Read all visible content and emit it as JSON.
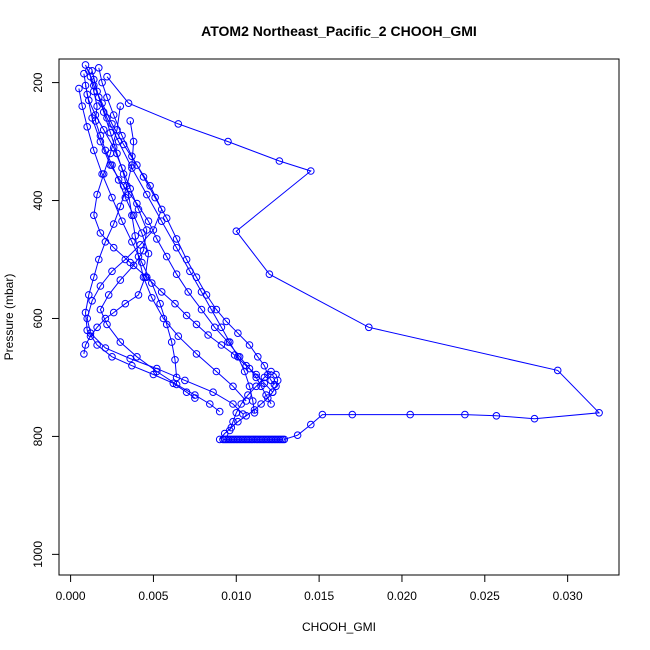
{
  "chart_data": {
    "type": "line",
    "title": "ATOM2 Northeast_Pacific_2 CHOOH_GMI",
    "xlabel": "CHOOH_GMI",
    "ylabel": "Pressure (mbar)",
    "xlim": [
      -0.0007,
      0.0331
    ],
    "ylim": [
      1035,
      160
    ],
    "y_reversed": true,
    "grid": false,
    "line_color": "#0000ff",
    "marker": "open-circle",
    "x_ticks": [
      0.0,
      0.005,
      0.01,
      0.015,
      0.02,
      0.025,
      0.03
    ],
    "x_tick_labels": [
      "0.000",
      "0.005",
      "0.010",
      "0.015",
      "0.020",
      "0.025",
      "0.030"
    ],
    "y_ticks": [
      200,
      400,
      600,
      800,
      1000
    ],
    "y_tick_labels": [
      "200",
      "400",
      "600",
      "800",
      "1000"
    ],
    "series": [
      {
        "x": [
          0.0009,
          0.0012,
          0.0014,
          0.0016,
          0.0015,
          0.0018,
          0.0021,
          0.0025,
          0.0029,
          0.0033,
          0.0038,
          0.0043,
          0.0047,
          0.0045,
          0.0041,
          0.0033,
          0.0026,
          0.0021,
          0.0016,
          0.0012,
          0.0009,
          0.0008
        ],
        "y": [
          170,
          190,
          215,
          240,
          265,
          290,
          315,
          340,
          365,
          395,
          425,
          455,
          490,
          530,
          560,
          575,
          590,
          600,
          615,
          630,
          645,
          660
        ]
      },
      {
        "x": [
          0.0017,
          0.0019,
          0.0022,
          0.0026,
          0.0031,
          0.0037,
          0.0044,
          0.0051,
          0.0058,
          0.0064,
          0.007,
          0.0076,
          0.0082,
          0.0088,
          0.0094,
          0.0101,
          0.0108,
          0.0113,
          0.0117,
          0.0119,
          0.0121,
          0.0123
        ],
        "y": [
          175,
          200,
          225,
          255,
          290,
          325,
          360,
          395,
          430,
          465,
          500,
          530,
          560,
          585,
          605,
          625,
          645,
          665,
          680,
          695,
          705,
          712
        ]
      },
      {
        "x": [
          0.0022,
          0.0035,
          0.0065,
          0.0095,
          0.0126,
          0.0145,
          0.01,
          0.012,
          0.018,
          0.0294,
          0.0319,
          0.028,
          0.0257,
          0.0238,
          0.0205,
          0.017,
          0.0152,
          0.0145,
          0.0137,
          0.0129
        ],
        "y": [
          190,
          235,
          270,
          300,
          333,
          350,
          452,
          525,
          615,
          688,
          760,
          770,
          765,
          763,
          763,
          763,
          763,
          780,
          798,
          805
        ]
      },
      {
        "x": [
          0.0008,
          0.001,
          0.0013,
          0.0018,
          0.0024,
          0.0032,
          0.004,
          0.0047,
          0.0052,
          0.0058,
          0.0064,
          0.0071,
          0.0079,
          0.0087,
          0.0095,
          0.0102,
          0.0108,
          0.0112,
          0.0115,
          0.0118,
          0.0121
        ],
        "y": [
          185,
          220,
          260,
          300,
          340,
          375,
          405,
          435,
          465,
          495,
          525,
          555,
          585,
          615,
          640,
          665,
          685,
          700,
          715,
          730,
          745
        ]
      },
      {
        "x": [
          0.0011,
          0.0014,
          0.0019,
          0.0025,
          0.0032,
          0.004,
          0.0048,
          0.0055,
          0.005,
          0.0042,
          0.0033,
          0.0025,
          0.0018,
          0.0013,
          0.001,
          0.0012,
          0.0021,
          0.0036,
          0.0052,
          0.0069,
          0.0086,
          0.0098,
          0.0104
        ],
        "y": [
          180,
          205,
          235,
          270,
          305,
          340,
          375,
          415,
          450,
          475,
          500,
          520,
          545,
          570,
          600,
          625,
          650,
          668,
          685,
          705,
          725,
          745,
          762
        ]
      },
      {
        "x": [
          0.003,
          0.0028,
          0.0024,
          0.002,
          0.0016,
          0.0014,
          0.0018,
          0.0026,
          0.0036,
          0.0046,
          0.0055,
          0.0063,
          0.007,
          0.0076,
          0.0083,
          0.0091,
          0.0099,
          0.0106,
          0.0112,
          0.0117,
          0.0122
        ],
        "y": [
          240,
          280,
          320,
          355,
          390,
          425,
          455,
          480,
          505,
          530,
          555,
          575,
          595,
          610,
          628,
          645,
          662,
          680,
          695,
          710,
          725
        ]
      },
      {
        "x": [
          0.0009,
          0.0011,
          0.0015,
          0.002,
          0.0026,
          0.0031,
          0.0036,
          0.0041,
          0.0046,
          0.0044,
          0.0038,
          0.003,
          0.0023,
          0.0018,
          0.0022,
          0.003,
          0.004,
          0.0052,
          0.0064,
          0.0075,
          0.0084,
          0.009
        ],
        "y": [
          205,
          230,
          255,
          280,
          310,
          345,
          380,
          415,
          450,
          485,
          510,
          535,
          560,
          585,
          610,
          640,
          665,
          690,
          712,
          730,
          745,
          758
        ]
      },
      {
        "x": [
          0.0014,
          0.0017,
          0.0022,
          0.0029,
          0.0037,
          0.0046,
          0.0055,
          0.0064,
          0.0072,
          0.0079,
          0.0085,
          0.0091,
          0.0096,
          0.0101,
          0.0105,
          0.0108,
          0.011,
          0.0111
        ],
        "y": [
          195,
          225,
          260,
          300,
          345,
          390,
          435,
          480,
          520,
          555,
          585,
          615,
          640,
          665,
          690,
          715,
          740,
          760
        ]
      },
      {
        "x": [
          0.0036,
          0.0038,
          0.0037,
          0.0034,
          0.003,
          0.0026,
          0.0021,
          0.0017,
          0.0014,
          0.0011,
          0.0009,
          0.001,
          0.0016,
          0.0025,
          0.0037,
          0.005,
          0.0062,
          0.007,
          0.0075
        ],
        "y": [
          265,
          300,
          340,
          375,
          410,
          440,
          470,
          500,
          530,
          560,
          590,
          620,
          645,
          665,
          680,
          695,
          710,
          725,
          735
        ]
      },
      {
        "x": [
          0.0092,
          0.0093,
          0.0094,
          0.0095,
          0.0096,
          0.0097,
          0.0098,
          0.0099,
          0.01,
          0.0101,
          0.0102,
          0.0103,
          0.0104,
          0.0105,
          0.0106,
          0.0107,
          0.0108,
          0.0109,
          0.011,
          0.0111,
          0.0112,
          0.0113,
          0.0114,
          0.0115,
          0.0116,
          0.0117,
          0.0118,
          0.0119,
          0.012,
          0.0121,
          0.0122,
          0.0123,
          0.0124,
          0.0125,
          0.0126,
          0.0127,
          0.0128
        ],
        "y": [
          805,
          805,
          805,
          805,
          805,
          805,
          805,
          805,
          805,
          805,
          805,
          805,
          805,
          805,
          805,
          805,
          805,
          805,
          805,
          805,
          805,
          805,
          805,
          805,
          805,
          805,
          805,
          805,
          805,
          805,
          805,
          805,
          805,
          805,
          805,
          805,
          805
        ]
      },
      {
        "x": [
          0.009,
          0.0093,
          0.0097,
          0.0101,
          0.0106,
          0.0111,
          0.0115,
          0.0119,
          0.0122,
          0.0124,
          0.0125,
          0.0124,
          0.0121,
          0.0117,
          0.0112,
          0.0107,
          0.0103,
          0.01,
          0.0098,
          0.0096
        ],
        "y": [
          805,
          795,
          785,
          775,
          765,
          755,
          745,
          735,
          725,
          715,
          705,
          695,
          690,
          700,
          715,
          730,
          745,
          760,
          775,
          790
        ]
      },
      {
        "x": [
          0.0005,
          0.0007,
          0.001,
          0.0014,
          0.0019,
          0.0025,
          0.0031,
          0.0037,
          0.0043,
          0.0049,
          0.0054,
          0.0058,
          0.0061,
          0.0063,
          0.0064
        ],
        "y": [
          210,
          240,
          275,
          315,
          355,
          395,
          435,
          470,
          505,
          540,
          575,
          610,
          640,
          670,
          700
        ]
      },
      {
        "x": [
          0.0013,
          0.0016,
          0.002,
          0.0024,
          0.0028,
          0.0032,
          0.0035,
          0.0037,
          0.0039,
          0.0041,
          0.0044,
          0.0049,
          0.0056,
          0.0065,
          0.0076,
          0.0088,
          0.0098,
          0.0106
        ],
        "y": [
          180,
          215,
          250,
          285,
          320,
          355,
          390,
          425,
          460,
          495,
          530,
          565,
          600,
          630,
          660,
          690,
          715,
          740
        ]
      }
    ]
  }
}
